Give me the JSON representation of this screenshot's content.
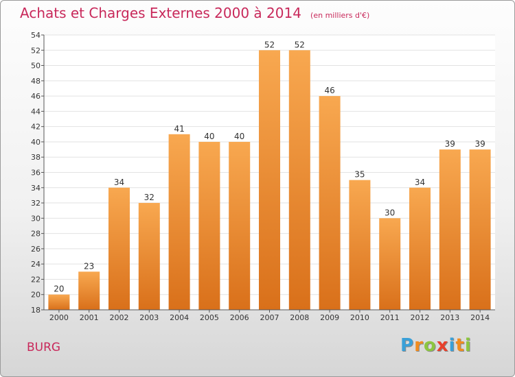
{
  "header": {
    "title": "Achats et Charges Externes 2000 à 2014",
    "unit": "(en milliers d'€)"
  },
  "footer": {
    "town": "BURG",
    "logo_letters": [
      "P",
      "r",
      "o",
      "x",
      "i",
      "t",
      "i"
    ],
    "logo_colors": [
      "#3aa0d8",
      "#f28c1e",
      "#8cc63f",
      "#e8412c",
      "#3aa0d8",
      "#f28c1e",
      "#8cc63f"
    ]
  },
  "colors": {
    "bar_top": "#f8a850",
    "bar_bottom": "#d9701a",
    "grid": "#e2e2e2",
    "title": "#c8285a"
  },
  "chart_data": {
    "type": "bar",
    "title": "Achats et Charges Externes 2000 à 2014",
    "subtitle": "(en milliers d'€)",
    "xlabel": "",
    "ylabel": "",
    "categories": [
      "2000",
      "2001",
      "2002",
      "2003",
      "2004",
      "2005",
      "2006",
      "2007",
      "2008",
      "2009",
      "2010",
      "2011",
      "2012",
      "2013",
      "2014"
    ],
    "values": [
      20,
      23,
      34,
      32,
      41,
      40,
      40,
      52,
      52,
      46,
      35,
      30,
      34,
      39,
      39
    ],
    "ylim": [
      18,
      54
    ],
    "yticks": [
      18,
      20,
      22,
      24,
      26,
      28,
      30,
      32,
      34,
      36,
      38,
      40,
      42,
      44,
      46,
      48,
      50,
      52,
      54
    ],
    "grid": true
  }
}
